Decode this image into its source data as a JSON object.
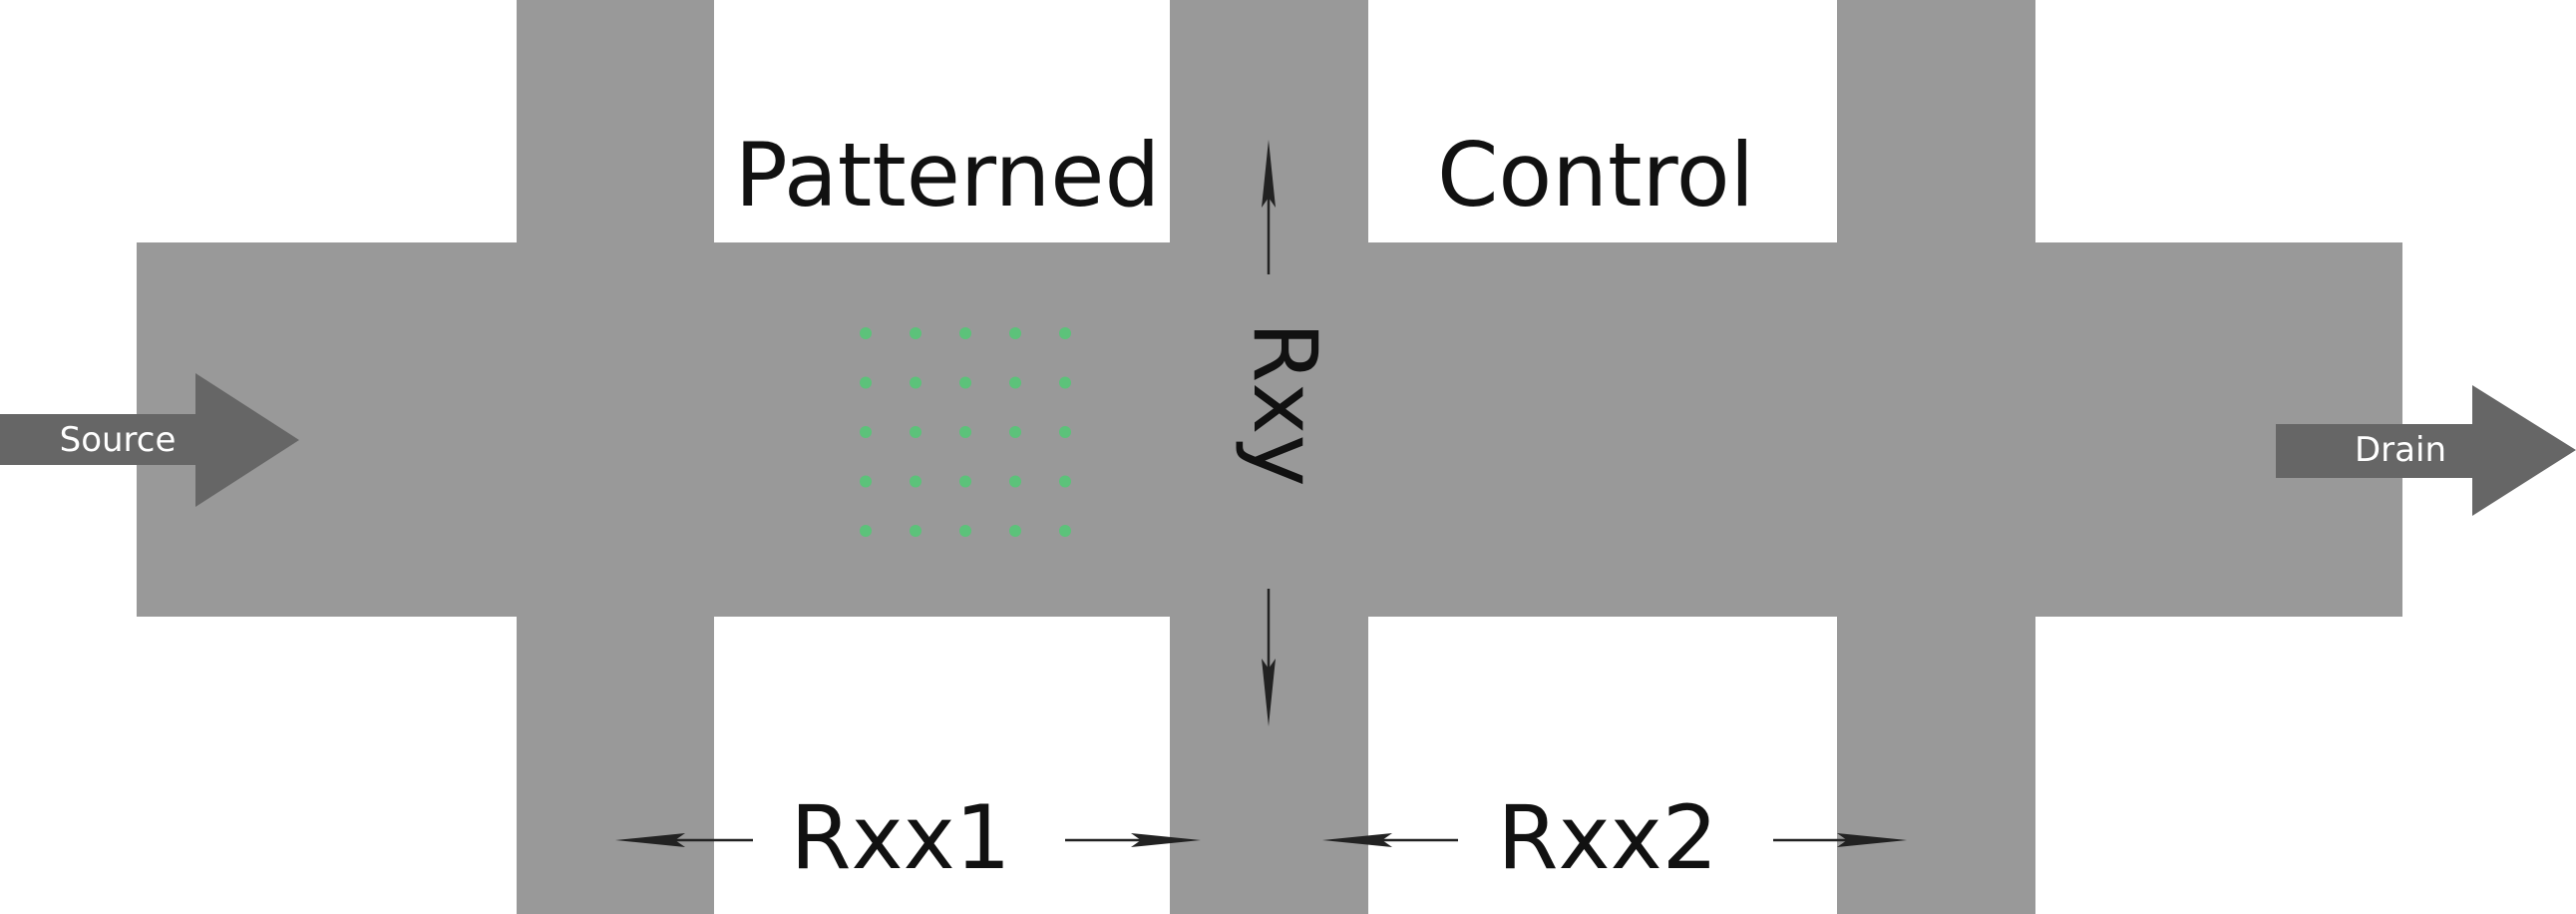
{
  "labels": {
    "source": "Source",
    "drain": "Drain",
    "patterned": "Patterned",
    "control": "Control",
    "rxy": "Rxy",
    "rxx1": "Rxx1",
    "rxx2": "Rxx2"
  },
  "pattern": {
    "rows": 5,
    "cols": 5,
    "color": "#5cc27a"
  },
  "colors": {
    "hall_bar": "#999999",
    "port_arrow": "#666666",
    "text": "#111111",
    "measurement_arrow": "#222222"
  }
}
